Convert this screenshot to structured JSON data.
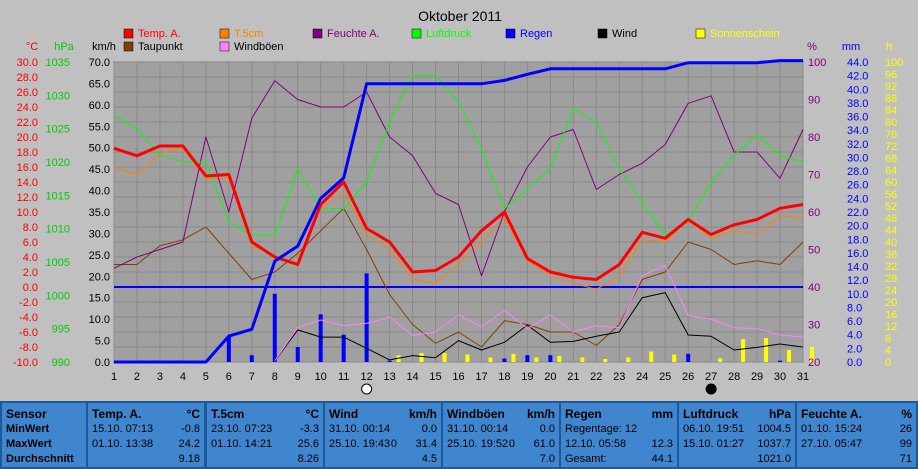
{
  "chart_data": {
    "type": "line",
    "title": "Oktober 2011",
    "x": [
      1,
      2,
      3,
      4,
      5,
      6,
      7,
      8,
      9,
      10,
      11,
      12,
      13,
      14,
      15,
      16,
      17,
      18,
      19,
      20,
      21,
      22,
      23,
      24,
      25,
      26,
      27,
      28,
      29,
      30,
      31
    ],
    "axes": {
      "temp": {
        "unit": "°C",
        "range": [
          -10,
          30
        ],
        "step": 2,
        "color": "#ff0000"
      },
      "pressure": {
        "unit": "hPa",
        "range": [
          990,
          1035
        ],
        "step": 5,
        "color": "#00cc00"
      },
      "wind": {
        "unit": "km/h",
        "range": [
          0,
          70
        ],
        "step": 5,
        "color": "#000000"
      },
      "humidity": {
        "unit": "%",
        "range": [
          20,
          100
        ],
        "step": 10,
        "color": "#800080"
      },
      "rain": {
        "unit": "mm",
        "range": [
          0,
          44
        ],
        "step": 2,
        "color": "#0000ff"
      },
      "sun": {
        "unit": "h",
        "range": [
          0,
          100
        ],
        "step": 4,
        "color": "#ffff00"
      }
    },
    "legend": [
      {
        "name": "Temp. A.",
        "color": "#ff0000"
      },
      {
        "name": "T.5cm",
        "color": "#ff8000"
      },
      {
        "name": "Feuchte A.",
        "color": "#800080"
      },
      {
        "name": "Luftdruck",
        "color": "#00ff00"
      },
      {
        "name": "Regen",
        "color": "#0000ff"
      },
      {
        "name": "Wind",
        "color": "#000000"
      },
      {
        "name": "Sonnenschein",
        "color": "#ffff00"
      },
      {
        "name": "Taupunkt",
        "color": "#804000"
      },
      {
        "name": "Windböen",
        "color": "#ff80ff"
      }
    ],
    "series": [
      {
        "name": "Temp. A.",
        "axis": "temp",
        "color": "#ff0000",
        "width": 3,
        "values": [
          18.5,
          17.5,
          18.8,
          18.8,
          14.8,
          15.0,
          6.0,
          4.0,
          3.0,
          11.0,
          14.0,
          7.8,
          6.0,
          2.0,
          2.2,
          4.0,
          7.5,
          10.0,
          3.8,
          2.0,
          1.3,
          1.0,
          3.0,
          7.3,
          6.5,
          9.0,
          7.0,
          8.3,
          9.0,
          10.5,
          11.0
        ]
      },
      {
        "name": "T.5cm",
        "axis": "temp",
        "color": "#ff8000",
        "width": 1,
        "values": [
          16.0,
          15.0,
          17.8,
          18.5,
          14.5,
          14.5,
          5.5,
          4.2,
          3.0,
          10.5,
          12.5,
          7.0,
          5.0,
          1.0,
          0.5,
          3.0,
          6.0,
          9.3,
          3.5,
          1.5,
          0.5,
          -0.3,
          1.5,
          6.3,
          6.0,
          9.0,
          6.5,
          7.5,
          7.0,
          9.5,
          9.3
        ]
      },
      {
        "name": "Taupunkt",
        "axis": "temp",
        "color": "#804000",
        "width": 1,
        "values": [
          3.0,
          3.0,
          5.5,
          6.3,
          8.0,
          4.5,
          1.0,
          2.0,
          4.5,
          7.5,
          10.5,
          5.0,
          -1.0,
          -5.0,
          -7.5,
          -6.0,
          -8.0,
          -4.5,
          -5.0,
          -6.0,
          -6.0,
          -7.8,
          -5.0,
          1.0,
          2.0,
          6.0,
          5.0,
          3.0,
          3.5,
          3.0,
          6.0
        ]
      },
      {
        "name": "Feuchte A.",
        "axis": "humidity",
        "color": "#800080",
        "width": 1,
        "values": [
          45,
          48,
          50,
          52,
          80,
          60,
          85,
          95,
          90,
          88,
          88,
          92,
          80,
          75,
          65,
          62,
          43,
          60,
          72,
          80,
          82,
          66,
          70,
          73,
          78,
          89,
          91,
          76,
          76,
          69,
          82
        ]
      },
      {
        "name": "Luftdruck",
        "axis": "pressure",
        "color": "#00ff00",
        "width": 1,
        "values": [
          1027,
          1025,
          1021,
          1020,
          1020,
          1011,
          1009,
          1009,
          1019,
          1013,
          1013,
          1017,
          1026,
          1033,
          1033,
          1029,
          1022,
          1013,
          1016,
          1019,
          1028,
          1026,
          1019,
          1014,
          1009,
          1011,
          1017,
          1021,
          1024,
          1021,
          1020
        ]
      },
      {
        "name": "Regen",
        "axis": "rain",
        "color": "#0000ff",
        "width": 3,
        "values": [
          0,
          0,
          0,
          0,
          0,
          3.8,
          4.8,
          14.8,
          17.0,
          24.0,
          27.0,
          40.8,
          40.8,
          40.8,
          40.8,
          40.8,
          40.8,
          41.3,
          42.2,
          43.0,
          43.0,
          43.0,
          43.0,
          43.0,
          43.0,
          43.9,
          43.9,
          43.9,
          43.9,
          44.2,
          44.2
        ]
      },
      {
        "name": "Wind",
        "axis": "wind",
        "color": "#000000",
        "width": 1,
        "values": [
          null,
          null,
          null,
          null,
          null,
          null,
          null,
          0.2,
          7.5,
          5.8,
          5.8,
          3.2,
          0.5,
          1.5,
          1.0,
          5.0,
          2.8,
          4.6,
          8.6,
          4.6,
          4.8,
          6.0,
          7.0,
          15.0,
          16.2,
          6.3,
          6.0,
          2.8,
          3.4,
          4.2,
          3.5
        ]
      },
      {
        "name": "Windböen",
        "axis": "wind",
        "color": "#ff80ff",
        "width": 1,
        "values": [
          null,
          null,
          null,
          null,
          null,
          null,
          null,
          0.3,
          8.0,
          9.8,
          8.5,
          9.0,
          10.5,
          6.2,
          7.0,
          11.0,
          8.2,
          12.0,
          7.8,
          11.0,
          7.0,
          8.5,
          8.0,
          20.2,
          22.5,
          10.8,
          10.0,
          8.0,
          7.8,
          6.3,
          5.8
        ]
      }
    ],
    "bars": [
      {
        "name": "Regen",
        "axis": "rain",
        "color": "#0000ff",
        "values": [
          0,
          0,
          0,
          0,
          0,
          3.8,
          1.0,
          10.0,
          2.2,
          7.0,
          4.0,
          13.0,
          0.2,
          0,
          0,
          0,
          0,
          0.5,
          1.0,
          1.0,
          0,
          0,
          0,
          0,
          0,
          1.2,
          0,
          0,
          0,
          0.2,
          0
        ]
      },
      {
        "name": "Sonnenschein",
        "axis": "sun",
        "color": "#ffff00",
        "values": [
          0,
          0,
          0,
          0,
          0,
          0,
          0,
          0,
          0,
          0,
          0,
          0,
          2.2,
          3.0,
          3.0,
          2.5,
          1.5,
          2.7,
          1.5,
          2.0,
          1.5,
          1.0,
          1.5,
          3.5,
          2.5,
          0,
          1.2,
          7.6,
          8.0,
          4.0,
          5.0
        ]
      }
    ],
    "moon": [
      {
        "day": 12,
        "phase": "full"
      },
      {
        "day": 27,
        "phase": "new"
      }
    ]
  },
  "stats": {
    "sensor": {
      "title": "Sensor",
      "min": "MinWert",
      "max": "MaxWert",
      "avg": "Durchschnitt"
    },
    "panels": [
      {
        "title": "Temp. A.",
        "unit": "°C",
        "min_time": "15.10.  07:13",
        "min_val": "-0.8",
        "max_time": "01.10.  13:38",
        "max_val": "24.2",
        "avg": "9.18"
      },
      {
        "title": "T.5cm",
        "unit": "°C",
        "min_time": "23.10.  07:23",
        "min_val": "-3.3",
        "max_time": "01.10.  14:21",
        "max_val": "25.6",
        "avg": "8.26"
      },
      {
        "title": "Wind",
        "unit": "km/h",
        "min_time": "31.10.  00:14",
        "min_val": "0.0",
        "max_time": "25.10.  19:43",
        "max_val": "31.4",
        "max_mid": "0",
        "avg": "4.5"
      },
      {
        "title": "Windböen",
        "unit": "km/h",
        "min_time": "31.10.  00:14",
        "min_val": "0.0",
        "max_time": "25.10.  19:52",
        "max_val": "61.0",
        "max_mid": "0",
        "avg": "7.0"
      },
      {
        "title": "Regen",
        "unit": "mm",
        "min_time": "Regentage: 12",
        "min_val": "",
        "max_time": "12.10.  05:58",
        "max_val": "12.3",
        "avg_label": "Gesamt:",
        "avg": "44.1"
      },
      {
        "title": "Luftdruck",
        "unit": "hPa",
        "min_time": "06.10.  19:51",
        "min_val": "1004.5",
        "max_time": "15.10.  01:27",
        "max_val": "1037.7",
        "avg": "1021.0"
      },
      {
        "title": "Feuchte A.",
        "unit": "%",
        "min_time": "01.10.  15:24",
        "min_val": "26",
        "max_time": "27.10.  05:47",
        "max_val": "99",
        "avg": "71"
      }
    ]
  }
}
